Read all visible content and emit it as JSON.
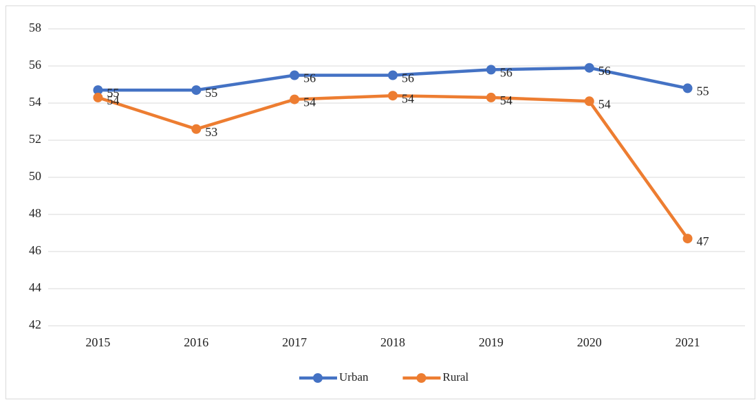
{
  "chart_data": {
    "type": "line",
    "categories": [
      "2015",
      "2016",
      "2017",
      "2018",
      "2019",
      "2020",
      "2021"
    ],
    "series": [
      {
        "name": "Urban",
        "color": "#4472c4",
        "values": [
          54.7,
          54.7,
          55.5,
          55.5,
          55.8,
          55.9,
          54.8
        ],
        "value_labels": [
          "55",
          "55",
          "56",
          "56",
          "56",
          "56",
          "55"
        ]
      },
      {
        "name": "Rural",
        "color": "#ed7d31",
        "values": [
          54.3,
          52.6,
          54.2,
          54.4,
          54.3,
          54.1,
          46.7
        ],
        "value_labels": [
          "54",
          "53",
          "54",
          "54",
          "54",
          "54",
          "47"
        ]
      }
    ],
    "ylim": [
      42,
      58
    ],
    "yticks": [
      42,
      44,
      46,
      48,
      50,
      52,
      54,
      56,
      58
    ],
    "grid": true,
    "legend": "bottom"
  }
}
